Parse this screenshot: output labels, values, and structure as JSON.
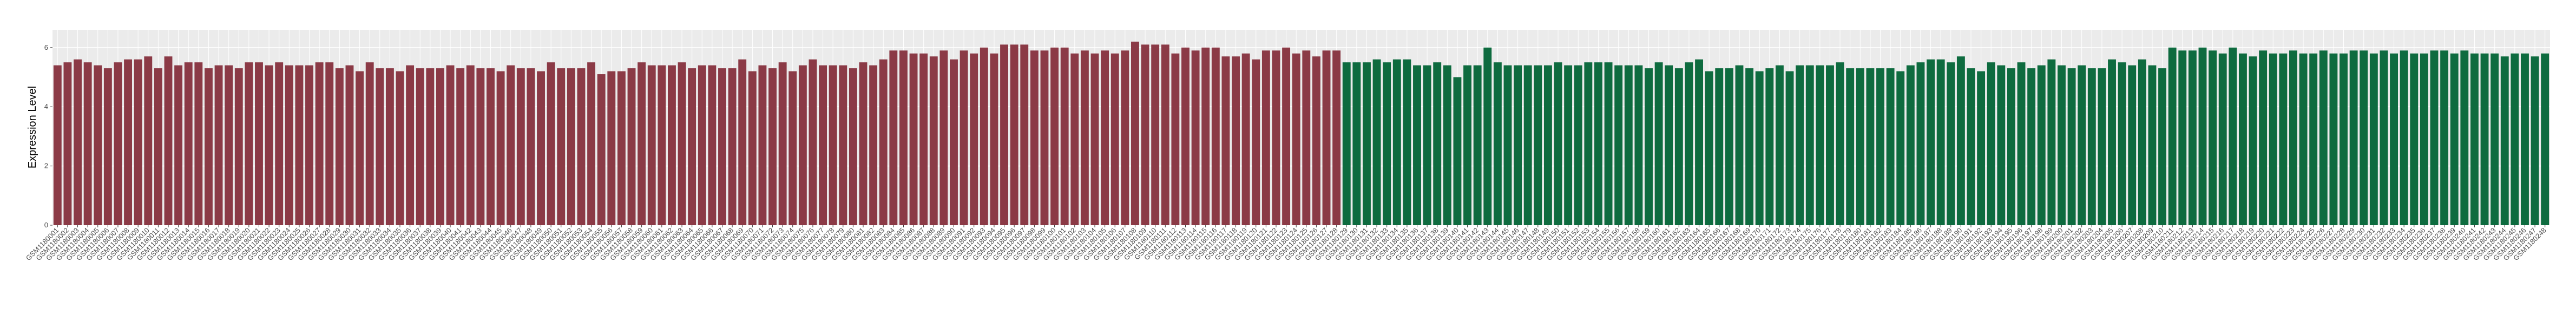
{
  "chart_data": {
    "type": "bar",
    "y_label": "Expression Level",
    "categories": [
      "GSM1180001",
      "GSM1180002",
      "GSM1180003",
      "GSM1180004",
      "GSM1180005",
      "GSM1180006",
      "GSM1180007",
      "GSM1180008",
      "GSM1180009",
      "GSM1180010",
      "GSM1180011",
      "GSM1180012",
      "GSM1180013",
      "GSM1180014",
      "GSM1180015",
      "GSM1180016",
      "GSM1180017",
      "GSM1180018",
      "GSM1180019",
      "GSM1180020",
      "GSM1180021",
      "GSM1180022",
      "GSM1180023",
      "GSM1180024",
      "GSM1180025",
      "GSM1180026",
      "GSM1180027",
      "GSM1180028",
      "GSM1180029",
      "GSM1180030",
      "GSM1180031",
      "GSM1180032",
      "GSM1180033",
      "GSM1180034",
      "GSM1180035",
      "GSM1180036",
      "GSM1180037",
      "GSM1180038",
      "GSM1180039",
      "GSM1180040",
      "GSM1180041",
      "GSM1180042",
      "GSM1180043",
      "GSM1180044",
      "GSM1180045",
      "GSM1180046",
      "GSM1180047",
      "GSM1180048",
      "GSM1180049",
      "GSM1180050",
      "GSM1180051",
      "GSM1180052",
      "GSM1180053",
      "GSM1180054",
      "GSM1180055",
      "GSM1180056",
      "GSM1180057",
      "GSM1180058",
      "GSM1180059",
      "GSM1180060",
      "GSM1180061",
      "GSM1180062",
      "GSM1180063",
      "GSM1180064",
      "GSM1180065",
      "GSM1180066",
      "GSM1180067",
      "GSM1180068",
      "GSM1180069",
      "GSM1180070",
      "GSM1180071",
      "GSM1180072",
      "GSM1180073",
      "GSM1180074",
      "GSM1180075",
      "GSM1180076",
      "GSM1180077",
      "GSM1180078",
      "GSM1180079",
      "GSM1180080",
      "GSM1180081",
      "GSM1180082",
      "GSM1180083",
      "GSM1180084",
      "GSM1180085",
      "GSM1180086",
      "GSM1180087",
      "GSM1180088",
      "GSM1180089",
      "GSM1180090",
      "GSM1180091",
      "GSM1180092",
      "GSM1180093",
      "GSM1180094",
      "GSM1180095",
      "GSM1180096",
      "GSM1180097",
      "GSM1180098",
      "GSM1180099",
      "GSM1180100",
      "GSM1180101",
      "GSM1180102",
      "GSM1180103",
      "GSM1180104",
      "GSM1180105",
      "GSM1180106",
      "GSM1180107",
      "GSM1180108",
      "GSM1180109",
      "GSM1180110",
      "GSM1180111",
      "GSM1180112",
      "GSM1180113",
      "GSM1180114",
      "GSM1180115",
      "GSM1180116",
      "GSM1180117",
      "GSM1180118",
      "GSM1180119",
      "GSM1180120",
      "GSM1180121",
      "GSM1180122",
      "GSM1180123",
      "GSM1180124",
      "GSM1180125",
      "GSM1180126",
      "GSM1180127",
      "GSM1180128",
      "GSM1180129",
      "GSM1180130",
      "GSM1180131",
      "GSM1180132",
      "GSM1180133",
      "GSM1180134",
      "GSM1180135",
      "GSM1180136",
      "GSM1180137",
      "GSM1180138",
      "GSM1180139",
      "GSM1180140",
      "GSM1180141",
      "GSM1180142",
      "GSM1180143",
      "GSM1180144",
      "GSM1180145",
      "GSM1180146",
      "GSM1180147",
      "GSM1180148",
      "GSM1180149",
      "GSM1180150",
      "GSM1180151",
      "GSM1180152",
      "GSM1180153",
      "GSM1180154",
      "GSM1180155",
      "GSM1180156",
      "GSM1180157",
      "GSM1180158",
      "GSM1180159",
      "GSM1180160",
      "GSM1180161",
      "GSM1180162",
      "GSM1180163",
      "GSM1180164",
      "GSM1180165",
      "GSM1180166",
      "GSM1180167",
      "GSM1180168",
      "GSM1180169",
      "GSM1180170",
      "GSM1180171",
      "GSM1180172",
      "GSM1180173",
      "GSM1180174",
      "GSM1180175",
      "GSM1180176",
      "GSM1180177",
      "GSM1180178",
      "GSM1180179",
      "GSM1180180",
      "GSM1180181",
      "GSM1180182",
      "GSM1180183",
      "GSM1180184",
      "GSM1180185",
      "GSM1180186",
      "GSM1180187",
      "GSM1180188",
      "GSM1180189",
      "GSM1180190",
      "GSM1180191",
      "GSM1180192",
      "GSM1180193",
      "GSM1180194",
      "GSM1180195",
      "GSM1180196",
      "GSM1180197",
      "GSM1180198",
      "GSM1180199",
      "GSM1180200",
      "GSM1180201",
      "GSM1180202",
      "GSM1180203",
      "GSM1180204",
      "GSM1180205",
      "GSM1180206",
      "GSM1180207",
      "GSM1180208",
      "GSM1180209",
      "GSM1180210",
      "GSM1180211",
      "GSM1180212",
      "GSM1180213",
      "GSM1180214",
      "GSM1180215",
      "GSM1180216",
      "GSM1180217",
      "GSM1180218",
      "GSM1180219",
      "GSM1180220",
      "GSM1180221",
      "GSM1180222",
      "GSM1180223",
      "GSM1180224",
      "GSM1180225",
      "GSM1180226",
      "GSM1180227",
      "GSM1180228",
      "GSM1180229",
      "GSM1180230",
      "GSM1180231",
      "GSM1180232",
      "GSM1180233",
      "GSM1180234",
      "GSM1180235",
      "GSM1180236",
      "GSM1180237",
      "GSM1180238",
      "GSM1180239",
      "GSM1180240",
      "GSM1180241",
      "GSM1180242",
      "GSM1180243",
      "GSM1180244",
      "GSM1180245",
      "GSM1180246",
      "GSM1180247",
      "GSM1180248"
    ],
    "series": [
      {
        "color": "#8b3a46",
        "values": [
          5.4,
          5.5,
          5.6,
          5.5,
          5.4,
          5.3,
          5.5,
          5.6,
          5.6,
          5.7,
          5.3,
          5.7,
          5.4,
          5.5,
          5.5,
          5.3,
          5.4,
          5.4,
          5.3,
          5.5,
          5.5,
          5.4,
          5.5,
          5.4,
          5.4,
          5.4,
          5.5,
          5.5,
          5.3,
          5.4,
          5.2,
          5.5,
          5.3,
          5.3,
          5.2,
          5.4,
          5.3,
          5.3,
          5.3,
          5.4,
          5.3,
          5.4,
          5.3,
          5.3,
          5.2,
          5.4,
          5.3,
          5.3,
          5.2,
          5.5,
          5.3,
          5.3,
          5.3,
          5.5,
          5.1,
          5.2,
          5.2,
          5.3,
          5.5,
          5.4,
          5.4,
          5.4,
          5.5,
          5.3,
          5.4,
          5.4,
          5.3,
          5.3,
          5.6,
          5.2,
          5.4,
          5.3,
          5.5,
          5.2,
          5.4,
          5.6,
          5.4,
          5.4,
          5.4,
          5.3,
          5.5,
          5.4,
          5.6,
          5.9,
          5.9,
          5.8,
          5.8,
          5.7,
          5.9,
          5.6,
          5.9,
          5.8,
          6.0,
          5.8,
          6.1,
          6.1,
          6.1,
          5.9,
          5.9,
          6.0,
          6.0,
          5.8,
          5.9,
          5.8,
          5.9,
          5.8,
          5.9,
          6.2,
          6.1,
          6.1,
          6.1,
          5.8,
          6.0,
          5.9,
          6.0,
          6.0,
          5.7,
          5.7,
          5.8,
          5.6,
          5.9,
          5.9,
          6.0,
          5.8,
          5.9,
          5.7,
          5.9,
          5.9,
          null,
          null,
          null,
          null,
          null,
          null,
          null,
          null,
          null,
          null,
          null,
          null,
          null,
          null,
          null,
          null,
          null,
          null,
          null,
          null,
          null,
          null,
          null,
          null,
          null,
          null,
          null,
          null,
          null,
          null,
          null,
          null,
          null,
          null,
          null,
          null,
          null,
          null,
          null,
          null,
          null,
          null,
          null,
          null,
          null,
          null,
          null,
          null,
          null,
          null,
          null,
          null,
          null,
          null,
          null,
          null,
          null,
          null,
          null,
          null,
          null,
          null,
          null,
          null,
          null,
          null,
          null,
          null,
          null,
          null,
          null,
          null,
          null,
          null,
          null,
          null,
          null,
          null,
          null,
          null,
          null,
          null,
          null,
          null,
          null,
          null,
          null,
          null,
          null,
          null,
          null,
          null,
          null,
          null,
          null,
          null,
          null,
          null,
          null,
          null,
          null,
          null,
          null,
          null,
          null,
          null,
          null,
          null,
          null,
          null,
          null,
          null,
          null,
          null,
          null,
          null,
          null,
          null,
          null,
          null
        ]
      },
      {
        "color": "#0e6b3f",
        "values": [
          null,
          null,
          null,
          null,
          null,
          null,
          null,
          null,
          null,
          null,
          null,
          null,
          null,
          null,
          null,
          null,
          null,
          null,
          null,
          null,
          null,
          null,
          null,
          null,
          null,
          null,
          null,
          null,
          null,
          null,
          null,
          null,
          null,
          null,
          null,
          null,
          null,
          null,
          null,
          null,
          null,
          null,
          null,
          null,
          null,
          null,
          null,
          null,
          null,
          null,
          null,
          null,
          null,
          null,
          null,
          null,
          null,
          null,
          null,
          null,
          null,
          null,
          null,
          null,
          null,
          null,
          null,
          null,
          null,
          null,
          null,
          null,
          null,
          null,
          null,
          null,
          null,
          null,
          null,
          null,
          null,
          null,
          null,
          null,
          null,
          null,
          null,
          null,
          null,
          null,
          null,
          null,
          null,
          null,
          null,
          null,
          null,
          null,
          null,
          null,
          null,
          null,
          null,
          null,
          null,
          null,
          null,
          null,
          null,
          null,
          null,
          null,
          null,
          null,
          null,
          null,
          null,
          null,
          null,
          null,
          null,
          null,
          null,
          null,
          null,
          null,
          null,
          null,
          5.5,
          5.5,
          5.5,
          5.6,
          5.5,
          5.6,
          5.6,
          5.4,
          5.4,
          5.5,
          5.4,
          5.0,
          5.4,
          5.4,
          6.0,
          5.5,
          5.4,
          5.4,
          5.4,
          5.4,
          5.4,
          5.5,
          5.4,
          5.4,
          5.5,
          5.5,
          5.5,
          5.4,
          5.4,
          5.4,
          5.3,
          5.5,
          5.4,
          5.3,
          5.5,
          5.6,
          5.2,
          5.3,
          5.3,
          5.4,
          5.3,
          5.2,
          5.3,
          5.4,
          5.2,
          5.4,
          5.4,
          5.4,
          5.4,
          5.5,
          5.3,
          5.3,
          5.3,
          5.3,
          5.3,
          5.2,
          5.4,
          5.5,
          5.6,
          5.6,
          5.5,
          5.7,
          5.3,
          5.2,
          5.5,
          5.4,
          5.3,
          5.5,
          5.3,
          5.4,
          5.6,
          5.4,
          5.3,
          5.4,
          5.3,
          5.3,
          5.6,
          5.5,
          5.4,
          5.6,
          5.4,
          5.3,
          6.0,
          5.9,
          5.9,
          6.0,
          5.9,
          5.8,
          6.0,
          5.8,
          5.7,
          5.9,
          5.8,
          5.8,
          5.9,
          5.8,
          5.8,
          5.9,
          5.8,
          5.8,
          5.9,
          5.9,
          5.8,
          5.9,
          5.8,
          5.9,
          5.8,
          5.8,
          5.9,
          5.9,
          5.8,
          5.9,
          5.8,
          5.8,
          5.8,
          5.7,
          5.8,
          5.8,
          5.7,
          5.8
        ]
      }
    ],
    "ylim": [
      0,
      6.6
    ],
    "yticks": [
      0,
      2,
      4,
      6
    ],
    "grid": true,
    "panel_color": "#ebebeb"
  }
}
